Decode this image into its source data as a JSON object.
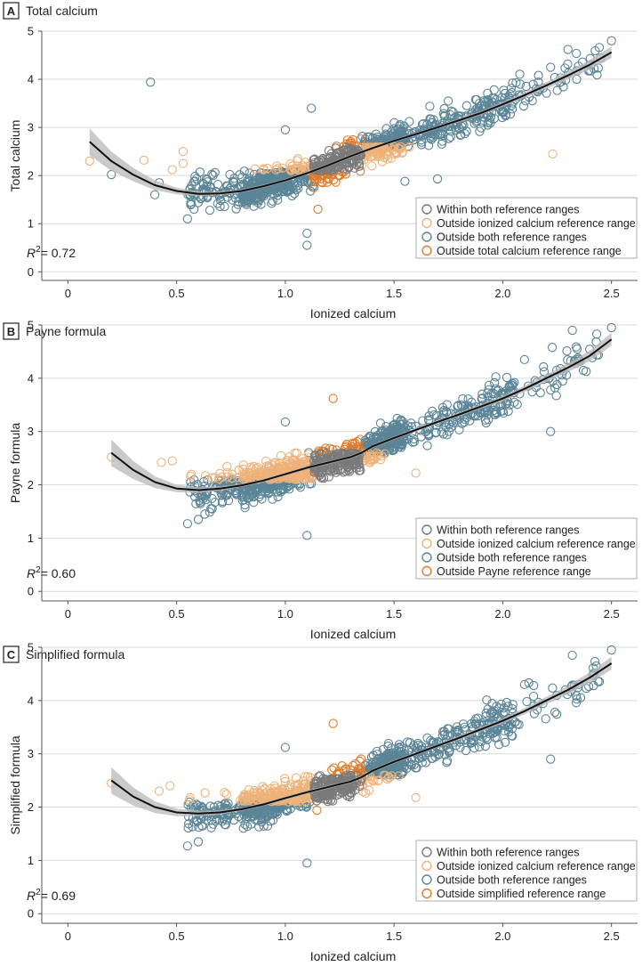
{
  "colors": {
    "within": "#7a7a7a",
    "outside_ionized": "#efb27a",
    "outside_both": "#5b8597",
    "outside_other": "#e07b2a",
    "band_ionized": "#eeb27c",
    "band_total": "#e27d2b",
    "band_within": "#8a8a8a",
    "fit_line": "#111111",
    "ci_band": "#b8b8b8",
    "grid": "#d9d9d9"
  },
  "chart_data": [
    {
      "type": "scatter",
      "panel_letter": "A",
      "title": "Total calcium",
      "xlabel": "Ionized calcium",
      "ylabel": "Total calcium",
      "xlim": [
        -0.12,
        2.62
      ],
      "ylim": [
        -0.18,
        5.0
      ],
      "x_ticks": [
        0,
        0.5,
        1.0,
        1.5,
        2.0,
        2.5
      ],
      "x_tick_labels": [
        "0",
        "0.5",
        "1.0",
        "1.5",
        "2.0",
        "2.5"
      ],
      "y_ticks": [
        0,
        1,
        2,
        3,
        4,
        5
      ],
      "y_tick_labels": [
        "0",
        "1",
        "2",
        "3",
        "4",
        "5"
      ],
      "grid": "horizontal",
      "legend_position": "bottom-right",
      "legend": [
        {
          "label": "Within both reference ranges",
          "color_key": "within"
        },
        {
          "label": "Outside ionized calcium reference range",
          "color_key": "outside_ionized"
        },
        {
          "label": "Outside both reference ranges",
          "color_key": "outside_both"
        },
        {
          "label": "Outside total calcium reference range",
          "color_key": "outside_other"
        }
      ],
      "r2_label": "= 0.72",
      "reference_ranges": {
        "x": [
          1.13,
          1.35
        ],
        "y": [
          2.1,
          2.6
        ]
      },
      "fit_curve": {
        "x": [
          0.1,
          0.2,
          0.3,
          0.4,
          0.5,
          0.6,
          0.7,
          0.8,
          0.9,
          1.0,
          1.1,
          1.2,
          1.3,
          1.4,
          1.5,
          1.6,
          1.7,
          1.8,
          1.9,
          2.0,
          2.1,
          2.2,
          2.3,
          2.4,
          2.5
        ],
        "y": [
          2.7,
          2.3,
          2.02,
          1.8,
          1.68,
          1.62,
          1.63,
          1.68,
          1.78,
          1.9,
          2.05,
          2.22,
          2.4,
          2.57,
          2.72,
          2.86,
          3.0,
          3.15,
          3.3,
          3.48,
          3.67,
          3.87,
          4.08,
          4.3,
          4.56
        ],
        "ci": [
          0.28,
          0.2,
          0.14,
          0.1,
          0.07,
          0.05,
          0.04,
          0.03,
          0.03,
          0.03,
          0.03,
          0.03,
          0.03,
          0.03,
          0.03,
          0.03,
          0.03,
          0.04,
          0.04,
          0.05,
          0.06,
          0.07,
          0.08,
          0.1,
          0.12
        ]
      },
      "outliers": [
        {
          "x": 0.1,
          "y": 2.3,
          "group": "outside_ionized"
        },
        {
          "x": 0.2,
          "y": 2.02,
          "group": "outside_both"
        },
        {
          "x": 0.35,
          "y": 2.32,
          "group": "outside_ionized"
        },
        {
          "x": 0.38,
          "y": 3.94,
          "group": "outside_both"
        },
        {
          "x": 0.4,
          "y": 1.6,
          "group": "outside_both"
        },
        {
          "x": 0.42,
          "y": 1.85,
          "group": "outside_both"
        },
        {
          "x": 0.48,
          "y": 2.12,
          "group": "outside_ionized"
        },
        {
          "x": 0.53,
          "y": 2.5,
          "group": "outside_ionized"
        },
        {
          "x": 0.53,
          "y": 2.25,
          "group": "outside_ionized"
        },
        {
          "x": 0.55,
          "y": 1.1,
          "group": "outside_both"
        },
        {
          "x": 0.58,
          "y": 1.3,
          "group": "outside_both"
        },
        {
          "x": 1.1,
          "y": 0.55,
          "group": "outside_both"
        },
        {
          "x": 1.1,
          "y": 0.8,
          "group": "outside_both"
        },
        {
          "x": 1.0,
          "y": 2.95,
          "group": "outside_both"
        },
        {
          "x": 1.12,
          "y": 3.4,
          "group": "outside_both"
        },
        {
          "x": 1.15,
          "y": 1.3,
          "group": "outside_other"
        },
        {
          "x": 1.55,
          "y": 1.88,
          "group": "outside_both"
        },
        {
          "x": 1.7,
          "y": 1.93,
          "group": "outside_both"
        },
        {
          "x": 2.23,
          "y": 2.45,
          "group": "outside_ionized"
        },
        {
          "x": 2.08,
          "y": 3.9,
          "group": "outside_both"
        },
        {
          "x": 2.22,
          "y": 4.25,
          "group": "outside_both"
        },
        {
          "x": 2.3,
          "y": 4.62,
          "group": "outside_both"
        },
        {
          "x": 2.34,
          "y": 4.0,
          "group": "outside_both"
        },
        {
          "x": 2.42,
          "y": 4.22,
          "group": "outside_both"
        },
        {
          "x": 2.5,
          "y": 4.8,
          "group": "outside_both"
        }
      ]
    },
    {
      "type": "scatter",
      "panel_letter": "B",
      "title": "Payne formula",
      "xlabel": "Ionized calcium",
      "ylabel": "Payne formula",
      "xlim": [
        -0.12,
        2.62
      ],
      "ylim": [
        -0.18,
        5.0
      ],
      "x_ticks": [
        0,
        0.5,
        1.0,
        1.5,
        2.0,
        2.5
      ],
      "x_tick_labels": [
        "0",
        "0.5",
        "1.0",
        "1.5",
        "2.0",
        "2.5"
      ],
      "y_ticks": [
        0,
        1,
        2,
        3,
        4,
        5
      ],
      "y_tick_labels": [
        "0",
        "1",
        "2",
        "3",
        "4",
        "5"
      ],
      "grid": "horizontal",
      "legend_position": "bottom-right",
      "legend": [
        {
          "label": "Within both reference ranges",
          "color_key": "within"
        },
        {
          "label": "Outside ionized calcium reference range",
          "color_key": "outside_ionized"
        },
        {
          "label": "Outside both reference ranges",
          "color_key": "outside_both"
        },
        {
          "label": "Outside Payne reference range",
          "color_key": "outside_other"
        }
      ],
      "r2_label": "= 0.60",
      "reference_ranges": {
        "x": [
          1.13,
          1.35
        ],
        "y": [
          2.1,
          2.6
        ]
      },
      "fit_curve": {
        "x": [
          0.2,
          0.3,
          0.4,
          0.5,
          0.6,
          0.7,
          0.8,
          0.9,
          1.0,
          1.1,
          1.2,
          1.3,
          1.35,
          1.4,
          1.5,
          1.6,
          1.7,
          1.8,
          1.9,
          2.0,
          2.1,
          2.2,
          2.3,
          2.4,
          2.5
        ],
        "y": [
          2.6,
          2.28,
          2.05,
          1.93,
          1.9,
          1.93,
          1.99,
          2.08,
          2.2,
          2.32,
          2.42,
          2.52,
          2.6,
          2.72,
          2.88,
          3.03,
          3.18,
          3.32,
          3.47,
          3.62,
          3.8,
          4.0,
          4.2,
          4.42,
          4.73
        ],
        "ci": [
          0.25,
          0.17,
          0.11,
          0.07,
          0.05,
          0.04,
          0.03,
          0.03,
          0.03,
          0.03,
          0.03,
          0.03,
          0.03,
          0.03,
          0.03,
          0.03,
          0.03,
          0.04,
          0.04,
          0.05,
          0.06,
          0.07,
          0.08,
          0.1,
          0.12
        ]
      },
      "outliers": [
        {
          "x": 0.2,
          "y": 2.52,
          "group": "outside_ionized"
        },
        {
          "x": 0.43,
          "y": 2.42,
          "group": "outside_ionized"
        },
        {
          "x": 0.48,
          "y": 2.45,
          "group": "outside_ionized"
        },
        {
          "x": 0.55,
          "y": 1.27,
          "group": "outside_both"
        },
        {
          "x": 0.6,
          "y": 1.35,
          "group": "outside_both"
        },
        {
          "x": 0.63,
          "y": 1.45,
          "group": "outside_both"
        },
        {
          "x": 1.1,
          "y": 1.05,
          "group": "outside_both"
        },
        {
          "x": 1.0,
          "y": 3.18,
          "group": "outside_both"
        },
        {
          "x": 1.22,
          "y": 3.62,
          "group": "outside_other"
        },
        {
          "x": 1.6,
          "y": 2.22,
          "group": "outside_ionized"
        },
        {
          "x": 2.22,
          "y": 3.0,
          "group": "outside_both"
        },
        {
          "x": 2.24,
          "y": 3.82,
          "group": "outside_both"
        },
        {
          "x": 2.1,
          "y": 4.35,
          "group": "outside_both"
        },
        {
          "x": 2.35,
          "y": 4.32,
          "group": "outside_both"
        },
        {
          "x": 2.32,
          "y": 4.9,
          "group": "outside_both"
        },
        {
          "x": 2.5,
          "y": 4.95,
          "group": "outside_both"
        },
        {
          "x": 2.43,
          "y": 4.68,
          "group": "outside_both"
        }
      ]
    },
    {
      "type": "scatter",
      "panel_letter": "C",
      "title": "Simplified formula",
      "xlabel": "Ionized calcium",
      "ylabel": "Simplified formula",
      "xlim": [
        -0.12,
        2.62
      ],
      "ylim": [
        -0.18,
        5.0
      ],
      "x_ticks": [
        0,
        0.5,
        1.0,
        1.5,
        2.0,
        2.5
      ],
      "x_tick_labels": [
        "0",
        "0.5",
        "1.0",
        "1.5",
        "2.0",
        "2.5"
      ],
      "y_ticks": [
        0,
        1,
        2,
        3,
        4,
        5
      ],
      "y_tick_labels": [
        "0",
        "1",
        "2",
        "3",
        "4",
        "5"
      ],
      "grid": "horizontal",
      "legend_position": "bottom-right",
      "legend": [
        {
          "label": "Within both reference ranges",
          "color_key": "within"
        },
        {
          "label": "Outside ionized calcium reference range",
          "color_key": "outside_ionized"
        },
        {
          "label": "Outside both reference ranges",
          "color_key": "outside_both"
        },
        {
          "label": "Outside simplified reference range",
          "color_key": "outside_other"
        }
      ],
      "r2_label": "= 0.69",
      "reference_ranges": {
        "x": [
          1.13,
          1.35
        ],
        "y": [
          2.1,
          2.6
        ]
      },
      "fit_curve": {
        "x": [
          0.2,
          0.3,
          0.4,
          0.5,
          0.6,
          0.7,
          0.8,
          0.9,
          1.0,
          1.1,
          1.2,
          1.3,
          1.35,
          1.4,
          1.5,
          1.6,
          1.7,
          1.8,
          1.9,
          2.0,
          2.1,
          2.2,
          2.3,
          2.4,
          2.5
        ],
        "y": [
          2.5,
          2.2,
          2.0,
          1.9,
          1.88,
          1.9,
          1.96,
          2.05,
          2.17,
          2.28,
          2.38,
          2.48,
          2.56,
          2.68,
          2.85,
          3.0,
          3.15,
          3.3,
          3.46,
          3.62,
          3.8,
          4.0,
          4.2,
          4.43,
          4.7
        ],
        "ci": [
          0.25,
          0.17,
          0.11,
          0.07,
          0.05,
          0.04,
          0.03,
          0.03,
          0.03,
          0.03,
          0.03,
          0.03,
          0.03,
          0.03,
          0.03,
          0.03,
          0.03,
          0.04,
          0.04,
          0.05,
          0.06,
          0.07,
          0.08,
          0.1,
          0.12
        ]
      },
      "outliers": [
        {
          "x": 0.2,
          "y": 2.45,
          "group": "outside_ionized"
        },
        {
          "x": 0.42,
          "y": 2.3,
          "group": "outside_ionized"
        },
        {
          "x": 0.47,
          "y": 2.4,
          "group": "outside_ionized"
        },
        {
          "x": 0.55,
          "y": 1.27,
          "group": "outside_both"
        },
        {
          "x": 0.6,
          "y": 1.35,
          "group": "outside_both"
        },
        {
          "x": 1.1,
          "y": 0.95,
          "group": "outside_both"
        },
        {
          "x": 1.0,
          "y": 3.12,
          "group": "outside_both"
        },
        {
          "x": 1.22,
          "y": 3.57,
          "group": "outside_other"
        },
        {
          "x": 1.6,
          "y": 2.18,
          "group": "outside_ionized"
        },
        {
          "x": 2.22,
          "y": 2.9,
          "group": "outside_both"
        },
        {
          "x": 2.24,
          "y": 3.78,
          "group": "outside_both"
        },
        {
          "x": 2.1,
          "y": 4.3,
          "group": "outside_both"
        },
        {
          "x": 2.35,
          "y": 4.3,
          "group": "outside_both"
        },
        {
          "x": 2.32,
          "y": 4.85,
          "group": "outside_both"
        },
        {
          "x": 2.5,
          "y": 4.95,
          "group": "outside_both"
        },
        {
          "x": 2.43,
          "y": 4.65,
          "group": "outside_both"
        }
      ]
    }
  ]
}
